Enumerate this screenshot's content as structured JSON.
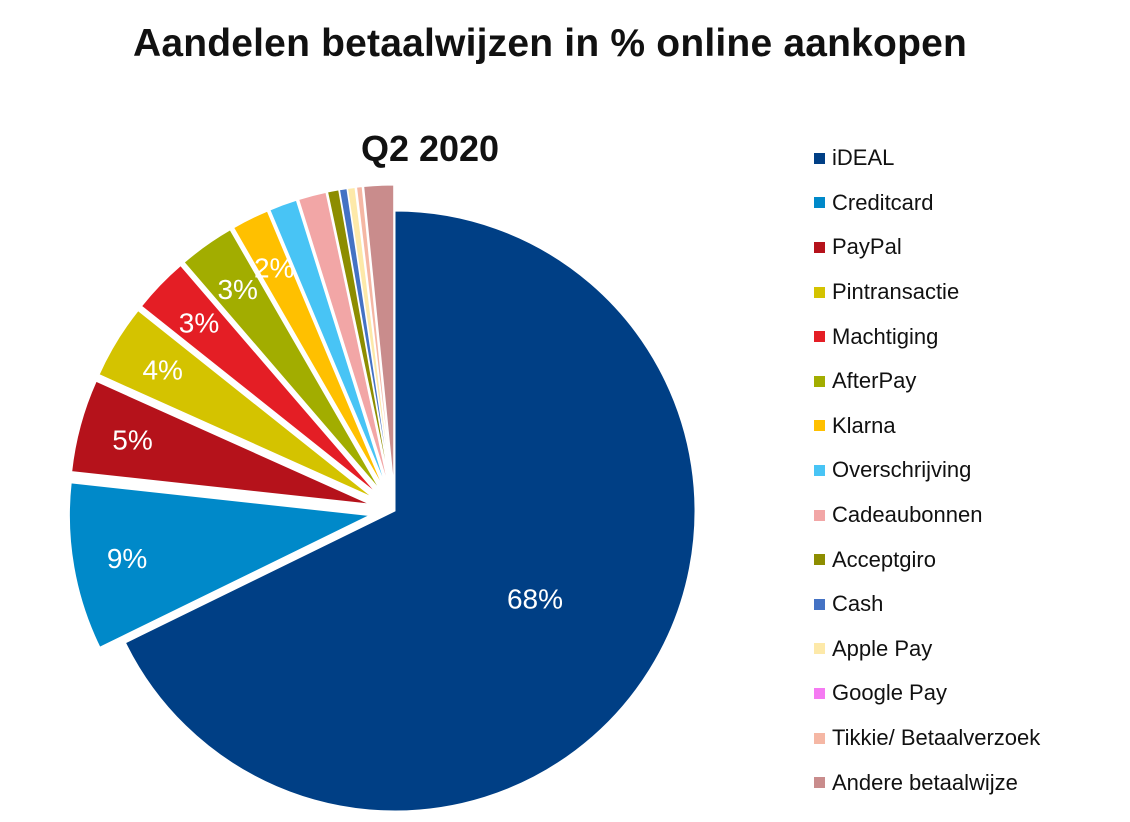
{
  "chart_data": {
    "type": "pie",
    "title": "Aandelen betaalwijzen in % online aankopen",
    "subtitle": "Q2 2020",
    "legend_position": "right",
    "categories": [
      "iDEAL",
      "Creditcard",
      "PayPal",
      "Pintransactie",
      "Machtiging",
      "AfterPay",
      "Klarna",
      "Overschrijving",
      "Cadeaubonnen",
      "Acceptgiro",
      "Cash",
      "Apple Pay",
      "Google Pay",
      "Tikkie/ Betaalverzoek",
      "Andere betaalwijze"
    ],
    "values": [
      68,
      9,
      5,
      4,
      3,
      3,
      2,
      1.5,
      1.5,
      0.6,
      0.4,
      0.4,
      0.05,
      0.3,
      1.6
    ],
    "value_labels": [
      "68%",
      "9%",
      "5%",
      "4%",
      "3%",
      "3%",
      "2%",
      "",
      "",
      "",
      "",
      "",
      "",
      "",
      ""
    ],
    "colors": [
      "#003f85",
      "#0089c9",
      "#b5121b",
      "#d4c300",
      "#e41e25",
      "#a2ad00",
      "#ffc000",
      "#48c4f5",
      "#f2a6a6",
      "#8d8d00",
      "#4472c4",
      "#fde9a9",
      "#f57af2",
      "#f5b7a4",
      "#c98c8c"
    ],
    "exploded": [
      false,
      true,
      true,
      true,
      true,
      true,
      true,
      true,
      true,
      true,
      true,
      true,
      true,
      true,
      true
    ]
  }
}
